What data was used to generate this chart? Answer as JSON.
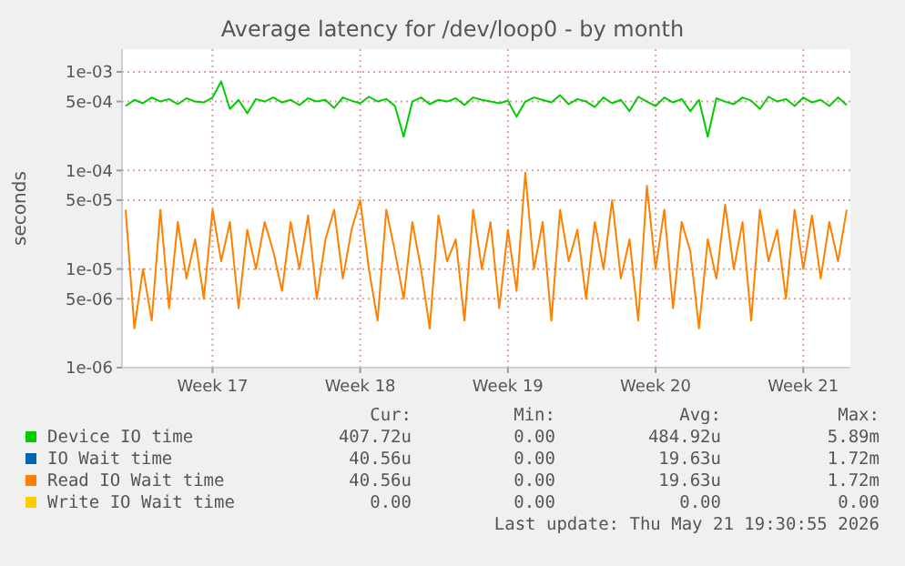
{
  "chart_data": {
    "type": "line",
    "title": "Average latency for /dev/loop0 - by month",
    "ylabel": "seconds",
    "log": "y",
    "grid": true,
    "legend": "bottom",
    "marker": "none",
    "line_style": "solid",
    "categories": [
      null,
      null,
      null,
      null,
      null,
      null,
      null,
      null,
      null,
      null,
      "Week 17",
      null,
      null,
      null,
      null,
      null,
      null,
      null,
      null,
      null,
      null,
      null,
      null,
      null,
      null,
      null,
      null,
      "Week 18",
      null,
      null,
      null,
      null,
      null,
      null,
      null,
      null,
      null,
      null,
      null,
      null,
      null,
      null,
      null,
      null,
      "Week 19",
      null,
      null,
      null,
      null,
      null,
      null,
      null,
      null,
      null,
      null,
      null,
      null,
      null,
      null,
      null,
      null,
      "Week 20",
      null,
      null,
      null,
      null,
      null,
      null,
      null,
      null,
      null,
      null,
      null,
      null,
      null,
      null,
      null,
      null,
      "Week 21",
      null,
      null,
      null,
      null,
      null
    ],
    "ylim": [
      1e-06,
      0.0017
    ],
    "yticks": [
      {
        "value": 0.001,
        "label": "1e-03"
      },
      {
        "value": 0.0005,
        "label": "5e-04"
      },
      {
        "value": 0.0001,
        "label": "1e-04"
      },
      {
        "value": 5e-05,
        "label": "5e-05"
      },
      {
        "value": 1e-05,
        "label": "1e-05"
      },
      {
        "value": 5e-06,
        "label": "5e-06"
      },
      {
        "value": 1e-06,
        "label": "1e-06"
      }
    ],
    "series": [
      {
        "name": "Device IO time",
        "color": "#00cc00",
        "values": [
          0.00045,
          0.00052,
          0.00048,
          0.00055,
          0.0005,
          0.00053,
          0.00047,
          0.00054,
          0.0005,
          0.00049,
          0.00055,
          0.0008,
          0.00042,
          0.00052,
          0.00038,
          0.00053,
          0.0005,
          0.00055,
          0.00049,
          0.00052,
          0.00046,
          0.00054,
          0.0005,
          0.00052,
          0.00043,
          0.00055,
          0.00051,
          0.00048,
          0.00056,
          0.0005,
          0.00053,
          0.00045,
          0.00022,
          0.0005,
          0.00055,
          0.00047,
          0.00052,
          0.0005,
          0.00054,
          0.00046,
          0.00055,
          0.00052,
          0.0005,
          0.00048,
          0.00051,
          0.00035,
          0.0005,
          0.00055,
          0.00052,
          0.00049,
          0.00058,
          0.00047,
          0.00053,
          0.0005,
          0.00044,
          0.00055,
          0.00048,
          0.00052,
          0.0004,
          0.00056,
          0.0005,
          0.00045,
          0.00055,
          0.00049,
          0.00053,
          0.0004,
          0.00052,
          0.00022,
          0.00054,
          0.0005,
          0.00047,
          0.00055,
          0.00051,
          0.00042,
          0.00056,
          0.0005,
          0.00053,
          0.00045,
          0.00055,
          0.00049,
          0.00052,
          0.00045,
          0.00055,
          0.00046
        ]
      },
      {
        "name": "IO Wait time",
        "color": "#0066b3",
        "values": [
          null,
          null,
          null,
          null,
          null,
          null,
          null,
          null,
          null,
          null,
          null,
          null,
          null,
          null,
          null,
          null,
          null,
          null,
          null,
          null,
          null,
          null,
          null,
          null,
          null,
          null,
          null,
          null,
          null,
          null,
          null,
          null,
          null,
          null,
          null,
          null,
          null,
          null,
          null,
          null,
          null,
          null,
          null,
          null,
          null,
          null,
          null,
          null,
          null,
          null,
          null,
          null,
          null,
          null,
          null,
          null,
          null,
          null,
          null,
          null,
          null,
          null,
          null,
          null,
          null,
          null,
          null,
          null,
          null,
          null,
          null,
          null,
          null,
          null,
          null,
          null,
          null,
          null,
          null,
          null,
          null,
          null,
          null,
          null
        ]
      },
      {
        "name": "Read IO Wait time",
        "color": "#ff8000",
        "values": [
          4e-05,
          2.5e-06,
          1e-05,
          3e-06,
          4e-05,
          4e-06,
          3e-05,
          8e-06,
          2e-05,
          5e-06,
          4e-05,
          1.2e-05,
          3e-05,
          4e-06,
          2.5e-05,
          1e-05,
          3e-05,
          1.5e-05,
          6e-06,
          3e-05,
          1e-05,
          3.5e-05,
          5e-06,
          2e-05,
          4e-05,
          8e-06,
          2.5e-05,
          5e-05,
          1e-05,
          3e-06,
          4e-05,
          1.5e-05,
          5e-06,
          3e-05,
          1e-05,
          2.5e-06,
          3.5e-05,
          1.2e-05,
          2e-05,
          3e-06,
          4e-05,
          1e-05,
          3e-05,
          4e-06,
          2.5e-05,
          6e-06,
          9.5e-05,
          1e-05,
          3e-05,
          3e-06,
          4e-05,
          1.2e-05,
          2.5e-05,
          5e-06,
          3e-05,
          1e-05,
          5e-05,
          8e-06,
          2e-05,
          3e-06,
          7e-05,
          1e-05,
          4e-05,
          4e-06,
          3e-05,
          1.5e-05,
          2.5e-06,
          2e-05,
          8e-06,
          4.5e-05,
          1e-05,
          3e-05,
          3e-06,
          4e-05,
          1.2e-05,
          2.5e-05,
          5e-06,
          4e-05,
          1e-05,
          3.5e-05,
          8e-06,
          3e-05,
          1.2e-05,
          4e-05
        ]
      },
      {
        "name": "Write IO Wait time",
        "color": "#ffcc00",
        "values": [
          null,
          null,
          null,
          null,
          null,
          null,
          null,
          null,
          null,
          null,
          null,
          null,
          null,
          null,
          null,
          null,
          null,
          null,
          null,
          null,
          null,
          null,
          null,
          null,
          null,
          null,
          null,
          null,
          null,
          null,
          null,
          null,
          null,
          null,
          null,
          null,
          null,
          null,
          null,
          null,
          null,
          null,
          null,
          null,
          null,
          null,
          null,
          null,
          null,
          null,
          null,
          null,
          null,
          null,
          null,
          null,
          null,
          null,
          null,
          null,
          null,
          null,
          null,
          null,
          null,
          null,
          null,
          null,
          null,
          null,
          null,
          null,
          null,
          null,
          null,
          null,
          null,
          null,
          null,
          null,
          null,
          null,
          null,
          null
        ]
      }
    ],
    "annotations": [
      "Cur:",
      "Min:",
      "Avg:",
      "Max:",
      "407.72u",
      "0.00",
      "484.92u",
      "5.89m",
      "40.56u",
      "0.00",
      "19.63u",
      "1.72m",
      "40.56u",
      "0.00",
      "19.63u",
      "1.72m",
      "0.00",
      "0.00",
      "0.00",
      "0.00",
      "Last update: Thu May 21 19:30:55 2026"
    ]
  }
}
